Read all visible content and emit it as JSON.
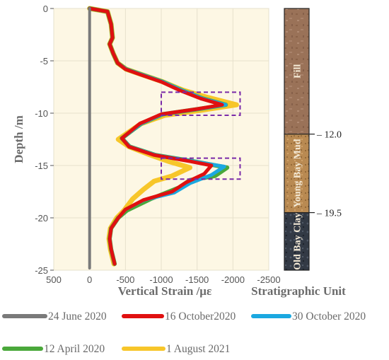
{
  "chart_data": {
    "type": "line",
    "title": "",
    "xlabel": "Vertical Strain /με",
    "ylabel": "Depth /m",
    "strata_title": "Stratigraphic Unit",
    "xlim": [
      500,
      -2500
    ],
    "ylim": [
      0,
      -25
    ],
    "x_ticks": [
      500,
      0,
      -500,
      -1000,
      -1500,
      -2000,
      -2500
    ],
    "x_tick_labels": [
      "500",
      "0",
      "-500",
      "-1000",
      "-1500",
      "-2000",
      "-2500"
    ],
    "y_ticks": [
      0,
      -5,
      -10,
      -15,
      -20,
      -25
    ],
    "y_tick_labels": [
      "0",
      "-5",
      "-10",
      "-15",
      "-20",
      "-25"
    ],
    "grid": true,
    "legend_position": "bottom",
    "series": [
      {
        "name": "24 June 2020",
        "color": "#7a7a7a",
        "points": [
          [
            0,
            0
          ],
          [
            0,
            -5
          ],
          [
            0,
            -10
          ],
          [
            0,
            -15
          ],
          [
            0,
            -20
          ],
          [
            0,
            -24.8
          ]
        ]
      },
      {
        "name": "16 October2020",
        "color": "#e01010",
        "points": [
          [
            0,
            0
          ],
          [
            -250,
            -0.3
          ],
          [
            -300,
            -1.5
          ],
          [
            -320,
            -2.8
          ],
          [
            -280,
            -3.4
          ],
          [
            -330,
            -4.3
          ],
          [
            -390,
            -5.2
          ],
          [
            -500,
            -5.8
          ],
          [
            -700,
            -6.3
          ],
          [
            -1000,
            -7
          ],
          [
            -1250,
            -7.8
          ],
          [
            -1550,
            -8.6
          ],
          [
            -1850,
            -9.2
          ],
          [
            -1500,
            -9.6
          ],
          [
            -1000,
            -10.1
          ],
          [
            -700,
            -11
          ],
          [
            -450,
            -12.4
          ],
          [
            -550,
            -13.2
          ],
          [
            -900,
            -14
          ],
          [
            -1400,
            -14.6
          ],
          [
            -1700,
            -15
          ],
          [
            -1600,
            -15.8
          ],
          [
            -1350,
            -16.6
          ],
          [
            -1150,
            -17.5
          ],
          [
            -750,
            -18.3
          ],
          [
            -500,
            -19.2
          ],
          [
            -400,
            -20
          ],
          [
            -300,
            -21
          ],
          [
            -280,
            -22
          ],
          [
            -300,
            -23
          ],
          [
            -350,
            -24.4
          ]
        ]
      },
      {
        "name": "30 October 2020",
        "color": "#1ba8e0",
        "points": [
          [
            0,
            0
          ],
          [
            -250,
            -0.3
          ],
          [
            -300,
            -1.5
          ],
          [
            -320,
            -2.8
          ],
          [
            -280,
            -3.4
          ],
          [
            -330,
            -4.3
          ],
          [
            -390,
            -5.2
          ],
          [
            -510,
            -5.8
          ],
          [
            -720,
            -6.3
          ],
          [
            -1020,
            -7
          ],
          [
            -1280,
            -7.8
          ],
          [
            -1580,
            -8.6
          ],
          [
            -1900,
            -9.2
          ],
          [
            -1520,
            -9.6
          ],
          [
            -1020,
            -10.1
          ],
          [
            -720,
            -11
          ],
          [
            -450,
            -12.4
          ],
          [
            -560,
            -13.2
          ],
          [
            -920,
            -14
          ],
          [
            -1450,
            -14.6
          ],
          [
            -1880,
            -15.1
          ],
          [
            -1700,
            -15.9
          ],
          [
            -1400,
            -16.7
          ],
          [
            -1180,
            -17.6
          ],
          [
            -760,
            -18.3
          ],
          [
            -500,
            -19.2
          ],
          [
            -400,
            -20
          ],
          [
            -300,
            -21
          ],
          [
            -280,
            -22
          ],
          [
            -300,
            -23
          ],
          [
            -350,
            -24.4
          ]
        ]
      },
      {
        "name": "12 April 2020",
        "color": "#4aa83a",
        "points": [
          [
            0,
            0
          ],
          [
            -250,
            -0.3
          ],
          [
            -300,
            -1.5
          ],
          [
            -320,
            -2.8
          ],
          [
            -280,
            -3.4
          ],
          [
            -330,
            -4.3
          ],
          [
            -390,
            -5.2
          ],
          [
            -510,
            -5.8
          ],
          [
            -720,
            -6.3
          ],
          [
            -1020,
            -7
          ],
          [
            -1280,
            -7.8
          ],
          [
            -1580,
            -8.6
          ],
          [
            -1900,
            -9.2
          ],
          [
            -1520,
            -9.6
          ],
          [
            -1020,
            -10.1
          ],
          [
            -720,
            -11
          ],
          [
            -450,
            -12.4
          ],
          [
            -560,
            -13.2
          ],
          [
            -920,
            -14
          ],
          [
            -1450,
            -14.6
          ],
          [
            -1920,
            -15.2
          ],
          [
            -1750,
            -16
          ],
          [
            -1400,
            -16.4
          ],
          [
            -1250,
            -17.1
          ],
          [
            -850,
            -18.2
          ],
          [
            -520,
            -19.3
          ],
          [
            -400,
            -20
          ],
          [
            -300,
            -21
          ],
          [
            -280,
            -22
          ],
          [
            -300,
            -23
          ],
          [
            -350,
            -24.4
          ]
        ]
      },
      {
        "name": "1 August 2021",
        "color": "#f7c62a",
        "points": [
          [
            0,
            0
          ],
          [
            -250,
            -0.3
          ],
          [
            -300,
            -1.5
          ],
          [
            -320,
            -2.8
          ],
          [
            -280,
            -3.4
          ],
          [
            -330,
            -4.3
          ],
          [
            -390,
            -5.2
          ],
          [
            -510,
            -5.8
          ],
          [
            -720,
            -6.3
          ],
          [
            -1020,
            -7
          ],
          [
            -1300,
            -7.8
          ],
          [
            -1650,
            -8.5
          ],
          [
            -2050,
            -9.2
          ],
          [
            -1580,
            -9.7
          ],
          [
            -1050,
            -10.2
          ],
          [
            -720,
            -11
          ],
          [
            -400,
            -12.5
          ],
          [
            -550,
            -13.2
          ],
          [
            -850,
            -14
          ],
          [
            -1100,
            -14.6
          ],
          [
            -1400,
            -15.2
          ],
          [
            -1150,
            -16
          ],
          [
            -900,
            -16.5
          ],
          [
            -750,
            -17.3
          ],
          [
            -600,
            -18.2
          ],
          [
            -480,
            -19.3
          ],
          [
            -380,
            -20
          ],
          [
            -290,
            -21
          ],
          [
            -270,
            -22
          ],
          [
            -290,
            -23
          ],
          [
            -340,
            -24.4
          ]
        ]
      }
    ],
    "highlight_boxes": [
      {
        "x": [
          -1000,
          -2100
        ],
        "y": [
          -8,
          -10.2
        ]
      },
      {
        "x": [
          -1000,
          -2100
        ],
        "y": [
          -14.3,
          -16.3
        ]
      }
    ],
    "strata": [
      {
        "label": "Fill",
        "top": 0,
        "bottom": -12.0,
        "color": "#9a7258"
      },
      {
        "label": "Young Bay Mud",
        "top": -12.0,
        "bottom": -19.5,
        "color": "#b98a52"
      },
      {
        "label": "Old Bay Clay",
        "top": -19.5,
        "bottom": -25,
        "color": "#333a45"
      }
    ],
    "strata_boundaries": [
      {
        "depth": -12.0,
        "label": "12.0"
      },
      {
        "depth": -19.5,
        "label": "19.5"
      }
    ]
  }
}
